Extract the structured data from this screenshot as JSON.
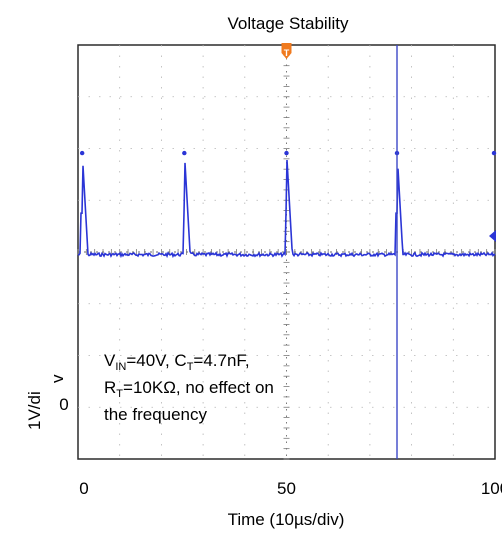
{
  "chart_data": {
    "type": "line",
    "title": "Voltage Stability",
    "xlabel": "Time (10µs/div)",
    "ylabel_line1": "1V/di",
    "ylabel_line2": "v",
    "xlim": [
      0,
      100
    ],
    "x_ticks": [
      0,
      50,
      100
    ],
    "x_tick_labels": [
      "0",
      "50",
      "100"
    ],
    "y_tick_labels": [
      "0"
    ],
    "grid": true,
    "annotation": {
      "line1_main": "V",
      "line1_sub": "IN",
      "line1_mid": "=40V, C",
      "line1_sub2": "T",
      "line1_end": "=4.7nF,",
      "line2_main": "R",
      "line2_sub": "T",
      "line2_end": "=10KΩ, no effect on",
      "line3": "the frequency"
    },
    "trigger_marker": "T",
    "series": [
      {
        "color": "#2b35d6",
        "baseline_div": 4.05,
        "spike_top_div": 2.05,
        "spike_times": [
          1,
          25.5,
          50,
          76.5,
          101
        ],
        "spike_width": 1.4
      }
    ],
    "cursor_x": 76.5
  }
}
